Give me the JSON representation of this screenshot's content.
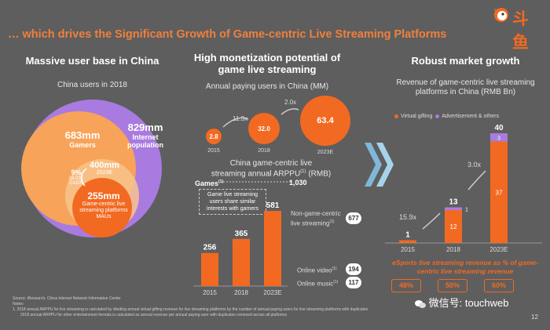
{
  "header": {
    "title": "… which drives the Significant Growth of Game-centric Live Streaming Platforms",
    "logo_text": "斗鱼",
    "page_number": "12"
  },
  "left": {
    "heading": "Massive user base in China",
    "subheading": "China users in 2018",
    "circles": [
      {
        "value": "829mm",
        "label": "Internet population",
        "color": "#a97be0"
      },
      {
        "value": "683mm",
        "label": "Gamers",
        "color": "#f7a35a"
      },
      {
        "value": "400mm",
        "label": "2023E",
        "color": "#f8c48d"
      },
      {
        "value": "255mm",
        "label": "Game-centric live streaming platforms MAUs",
        "color": "#f26a21"
      }
    ],
    "cagr": {
      "value": "9%",
      "label1": "18-23E",
      "label2": "CAGR"
    }
  },
  "middle": {
    "heading": "High monetization potential of game live streaming",
    "bubbles_title": "Annual paying users in China (MM)",
    "bubbles": [
      {
        "year": "2015",
        "value": "2.8"
      },
      {
        "year": "2018",
        "value": "32.0"
      },
      {
        "year": "2023E",
        "value": "63.4"
      }
    ],
    "multipliers": [
      "11.3x",
      "2.0x"
    ],
    "arppu_title_1": "China game-centric live",
    "arppu_title_2": "streaming annual ARPPU",
    "arppu_sup": "(1)",
    "arppu_unit": "(RMB)",
    "games_label": "Games",
    "games_sup": "(1)",
    "games_value": "1,030",
    "callout": "Game live streaming users share similar interests with gamers",
    "benchmarks": [
      {
        "label": "Non-game-centric live streaming",
        "sup": "(1)",
        "value": "677"
      },
      {
        "label": "Online video",
        "sup": "(1)",
        "value": "194"
      },
      {
        "label": "Online music",
        "sup": "(1)",
        "value": "117"
      }
    ]
  },
  "right": {
    "heading": "Robust market growth",
    "subheading": "Revenue of game-centric live streaming platforms in China (RMB Bn)",
    "legend": [
      {
        "label": "Virtual gifting",
        "color": "#f26a21"
      },
      {
        "label": "Advertisement & others",
        "color": "#a97be0"
      }
    ],
    "multipliers": [
      "15.9x",
      "3.0x"
    ],
    "esports_title": "eSports live streaming revenue as % of game-centric live streaming revenue",
    "esports_pct": [
      "48%",
      "50%",
      "60%"
    ]
  },
  "chart_data": [
    {
      "type": "bar",
      "title": "China game-centric live streaming annual ARPPU (RMB)",
      "categories": [
        "2015",
        "2018",
        "2023E"
      ],
      "values": [
        256,
        365,
        581
      ],
      "ylim": [
        0,
        1030
      ]
    },
    {
      "type": "bar",
      "title": "Revenue of game-centric live streaming platforms in China (RMB Bn)",
      "categories": [
        "2015",
        "2018",
        "2023E"
      ],
      "totals": [
        1,
        13,
        40
      ],
      "series": [
        {
          "name": "Virtual gifting",
          "values": [
            null,
            12,
            37
          ]
        },
        {
          "name": "Advertisement & others",
          "values": [
            null,
            1,
            3
          ]
        }
      ],
      "ylim": [
        0,
        40
      ]
    }
  ],
  "footer": {
    "source": "Source: iResearch, China Internet Network Information Center",
    "notes_label": "Notes:",
    "note1": "1.    2018 annual ARPPU for live streaming is calculated by dividing annual virtual gifting revenue for live streaming platforms by the number of annual paying users for live streaming platforms with duplicates",
    "note2": "2018 annual ARPPU for other entertainment formats is calculated as annual revenue per annual paying user with duplicates removed across all platforms",
    "watermark": "微信号: touchweb"
  }
}
